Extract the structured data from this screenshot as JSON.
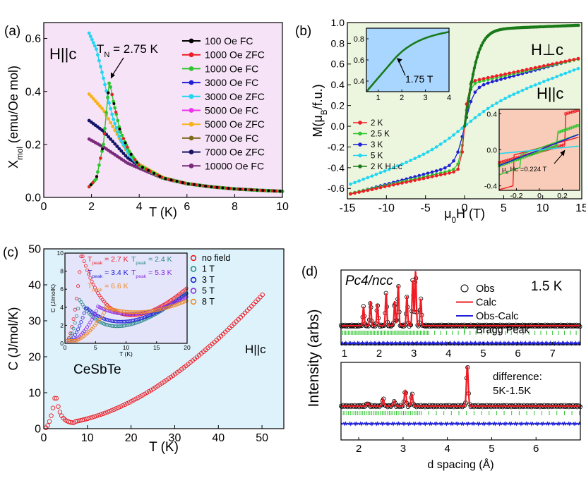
{
  "colors": {
    "bg_a": "#f7e3f7",
    "bg_b": "#ecf5dd",
    "bg_c": "#ddf2fb",
    "bg_d": "#ffffff",
    "inset_b1": "#a9d6ff",
    "inset_b2": "#f8ccb8",
    "inset_c": "#e4e4fb",
    "red": "#ee1c24",
    "green": "#2ec52e",
    "blue": "#1f1fd6",
    "cyan": "#20d6f2",
    "magenta": "#ee2fee",
    "orange": "#f6b21c",
    "olive": "#7f6a1e",
    "navy": "#141466",
    "purple": "#7a2a7a",
    "darkgreen": "#1a7a1a",
    "teal": "#2a8a8a",
    "violet": "#8a2be2",
    "orangeB": "#f08a24",
    "olive2": "#9a9a20"
  },
  "panels": {
    "a": {
      "label": "(a)",
      "annotation": "H||c",
      "tn_label": "T_N = 2.75 K",
      "tn_prefix": "T",
      "tn_sub": "N",
      "tn_suffix": " = 2.75 K"
    },
    "b": {
      "label": "(b)",
      "hperp": "H⊥c",
      "hpar": "H||c",
      "inset_top_note": "1.75 T",
      "inset_bot_note": "μ0 Hc =0.224 T",
      "inset_bot_mu": "μ",
      "inset_bot_sub": "0",
      "inset_bot_rest": " Hc =0.224 T"
    },
    "c": {
      "label": "(c)",
      "material": "CeSbTe",
      "orient": "H||c",
      "peaks": [
        {
          "sub": "peak",
          "text": " = 2.7 K",
          "color": "#ee1c24"
        },
        {
          "sub": "peak",
          "text": " = 2.4 K",
          "color": "#2a8a8a"
        },
        {
          "sub": "peak",
          "text": " = 3.4 K",
          "color": "#1f1fd6"
        },
        {
          "sub": "peak",
          "text": " = 5.3 K",
          "color": "#8a2be2"
        },
        {
          "sub": "peak",
          "text": " = 6.6 K",
          "color": "#f08a24"
        }
      ]
    },
    "d": {
      "label": "(d)",
      "spacegroup": "Pc4/ncc",
      "temp": "1.5 K",
      "diff_note1": "difference:",
      "diff_note2": "5K-1.5K"
    }
  },
  "chart_data": [
    {
      "id": "a",
      "type": "line",
      "xlabel": "T (K)",
      "ylabel": "χmol (emu/Oe mol)",
      "ylabel_main": "X",
      "ylabel_sub": "mol",
      "ylabel_rest": " (emu/Oe mol)",
      "xlim": [
        0,
        10
      ],
      "ylim": [
        0,
        0.66
      ],
      "xticks": [
        "0",
        "2",
        "4",
        "6",
        "8",
        "10"
      ],
      "yticks": [
        "0.0",
        "0.2",
        "0.4",
        "0.6"
      ],
      "series": [
        {
          "name": "100 Oe FC",
          "color": "#000000"
        },
        {
          "name": "1000 Oe ZFC",
          "color": "#ee1c24"
        },
        {
          "name": "1000 Oe FC",
          "color": "#2ec52e"
        },
        {
          "name": "3000 Oe FC",
          "color": "#1f1fd6"
        },
        {
          "name": "3000 Oe ZFC",
          "color": "#20d6f2"
        },
        {
          "name": "5000 Oe FC",
          "color": "#ee2fee"
        },
        {
          "name": "5000 Oe ZFC",
          "color": "#f6b21c"
        },
        {
          "name": "7000 Oe FC",
          "color": "#7f6a1e"
        },
        {
          "name": "7000 Oe ZFC",
          "color": "#141466"
        },
        {
          "name": "10000 Oe FC",
          "color": "#7a2a7a"
        }
      ],
      "curves": {
        "peak": {
          "x": [
            1.9,
            2.2,
            2.5,
            2.65,
            2.75,
            2.9,
            3.2,
            3.6,
            4.0,
            5,
            6,
            7,
            8,
            9,
            10
          ],
          "y": [
            0.04,
            0.07,
            0.2,
            0.35,
            0.44,
            0.37,
            0.25,
            0.17,
            0.12,
            0.073,
            0.052,
            0.04,
            0.032,
            0.027,
            0.023
          ]
        },
        "cyan": {
          "x": [
            1.9,
            2.2,
            2.5,
            2.7,
            2.9,
            3.2,
            3.6,
            4.0,
            5,
            6,
            7,
            8,
            9,
            10
          ],
          "y": [
            0.62,
            0.56,
            0.45,
            0.37,
            0.3,
            0.22,
            0.16,
            0.12,
            0.073,
            0.052,
            0.04,
            0.032,
            0.027,
            0.023
          ]
        },
        "orange": {
          "x": [
            1.9,
            2.5,
            3.0,
            3.5,
            4.0,
            5,
            6,
            7,
            8,
            9,
            10
          ],
          "y": [
            0.39,
            0.33,
            0.25,
            0.17,
            0.125,
            0.075,
            0.052,
            0.04,
            0.032,
            0.027,
            0.023
          ]
        },
        "navy": {
          "x": [
            1.9,
            2.5,
            3.0,
            3.5,
            4.0,
            5,
            6,
            7,
            8,
            9,
            10
          ],
          "y": [
            0.29,
            0.25,
            0.2,
            0.15,
            0.12,
            0.074,
            0.052,
            0.04,
            0.032,
            0.027,
            0.023
          ]
        },
        "purple": {
          "x": [
            1.9,
            2.5,
            3.0,
            3.5,
            4.0,
            5,
            6,
            7,
            8,
            9,
            10
          ],
          "y": [
            0.22,
            0.19,
            0.16,
            0.13,
            0.11,
            0.072,
            0.051,
            0.04,
            0.032,
            0.027,
            0.023
          ]
        }
      }
    },
    {
      "id": "b",
      "type": "line",
      "xlabel": "μ0H (T)",
      "xlabel_mu": "μ",
      "xlabel_sub": "0",
      "xlabel_rest": "H (T)",
      "ylabel": "M(μB/f.u.)",
      "ylabel_pre": "M(μ",
      "ylabel_sub": "B",
      "ylabel_rest": "/f.u.)",
      "xlim": [
        -15,
        15
      ],
      "ylim": [
        -0.7,
        1.0
      ],
      "xticks": [
        "-15",
        "-10",
        "-5",
        "0",
        "5",
        "10",
        "15"
      ],
      "yticks": [
        "-0.6",
        "-0.4",
        "-0.2",
        "0.0",
        "0.2",
        "0.4",
        "0.6",
        "0.8",
        "1.0"
      ],
      "series": [
        {
          "name": "2 K",
          "color": "#ee1c24"
        },
        {
          "name": "2.5 K",
          "color": "#2ec52e"
        },
        {
          "name": "3 K",
          "color": "#1f1fd6"
        },
        {
          "name": "5 K",
          "color": "#20d6f2"
        },
        {
          "name": "2 K H⊥c",
          "color": "#1a7a1a"
        }
      ],
      "inset_top": {
        "xticks": [
          "1",
          "2",
          "3",
          "4"
        ],
        "yticks": [
          "0.4",
          "0.6",
          "0.8"
        ],
        "xlim": [
          0.5,
          4
        ],
        "ylim": [
          0.3,
          0.9
        ]
      },
      "inset_bottom": {
        "xticks": [
          "-0.2",
          "0",
          "0.2"
        ],
        "yticks": [
          "-0.4",
          "0.0",
          "0.4"
        ]
      }
    },
    {
      "id": "c",
      "type": "scatter",
      "xlabel": "T (K)",
      "ylabel": "C (J/mol/K)",
      "xlim": [
        0,
        55
      ],
      "ylim": [
        0,
        50
      ],
      "xticks": [
        "0",
        "10",
        "20",
        "30",
        "40",
        "50"
      ],
      "yticks": [
        "0",
        "10",
        "20",
        "30",
        "40",
        "50"
      ],
      "series": [
        {
          "name": "no field",
          "color": "#ee1c24"
        },
        {
          "name": "1 T",
          "color": "#2a8a8a"
        },
        {
          "name": "3 T",
          "color": "#1f1fd6"
        },
        {
          "name": "5 T",
          "color": "#8a2be2"
        },
        {
          "name": "8 T",
          "color": "#f08a24"
        }
      ],
      "inset": {
        "xlabel": "T (K)",
        "ylabel": "C (J/molK)",
        "xticks": [
          "0",
          "5",
          "10",
          "15",
          "20"
        ],
        "yticks": [
          "0",
          "2",
          "4",
          "6",
          "8",
          "10"
        ],
        "xlim": [
          0,
          20
        ],
        "ylim": [
          0,
          10
        ]
      }
    },
    {
      "id": "d",
      "type": "line",
      "xlabel": "d spacing (Å)",
      "ylabel": "Intensity (arbs)",
      "top_xticks": [
        "1",
        "2",
        "3",
        "4",
        "5",
        "6",
        "7"
      ],
      "top_xlim": [
        0.9,
        7.8
      ],
      "bottom_xticks": [
        "2",
        "3",
        "4",
        "5",
        "6"
      ],
      "bottom_xlim": [
        1.6,
        7.0
      ],
      "series": [
        {
          "name": "Obs",
          "color": "#000000"
        },
        {
          "name": "Calc",
          "color": "#ee1c24"
        },
        {
          "name": "Obs-Calc",
          "color": "#1f1fd6"
        },
        {
          "name": "Bragg Peak",
          "color": "#2ec52e"
        }
      ],
      "top_peaks": [
        1.55,
        1.75,
        1.95,
        2.2,
        2.45,
        2.55,
        2.8,
        2.97,
        3.05,
        3.2
      ],
      "top_peak_heights": [
        0.35,
        0.45,
        0.4,
        0.6,
        0.45,
        0.75,
        0.55,
        0.85,
        1.0,
        0.5
      ],
      "bottom_peaks": [
        2.2,
        2.55,
        2.8,
        3.05,
        3.2,
        4.45
      ],
      "bottom_peak_heights": [
        0.08,
        0.18,
        0.12,
        0.4,
        0.3,
        1.0
      ]
    }
  ]
}
